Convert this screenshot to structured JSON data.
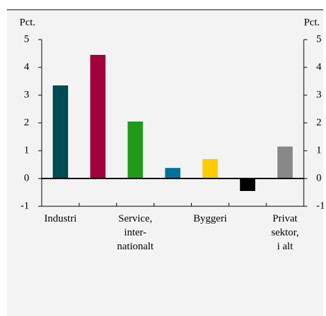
{
  "chart_data": {
    "type": "bar",
    "ylabel": "Pct.",
    "y2label": "Pct.",
    "categories": [
      "Industri",
      null,
      "Service,\ninter-\nnationalt",
      null,
      "Byggeri",
      null,
      "Privat\nsektor,\ni alt"
    ],
    "values": [
      3.35,
      4.45,
      2.05,
      0.38,
      0.7,
      -0.45,
      1.15
    ],
    "colors": [
      "#004c54",
      "#a0003c",
      "#1f9a1a",
      "#00729a",
      "#ffcc00",
      "#000000",
      "#888888"
    ],
    "ylim": [
      -1,
      5
    ],
    "yticks": [
      -1,
      0,
      1,
      2,
      3,
      4,
      5
    ],
    "y2lim": [
      -1,
      5
    ],
    "y2ticks": [
      -1,
      0,
      1,
      2,
      3,
      4,
      5
    ]
  }
}
